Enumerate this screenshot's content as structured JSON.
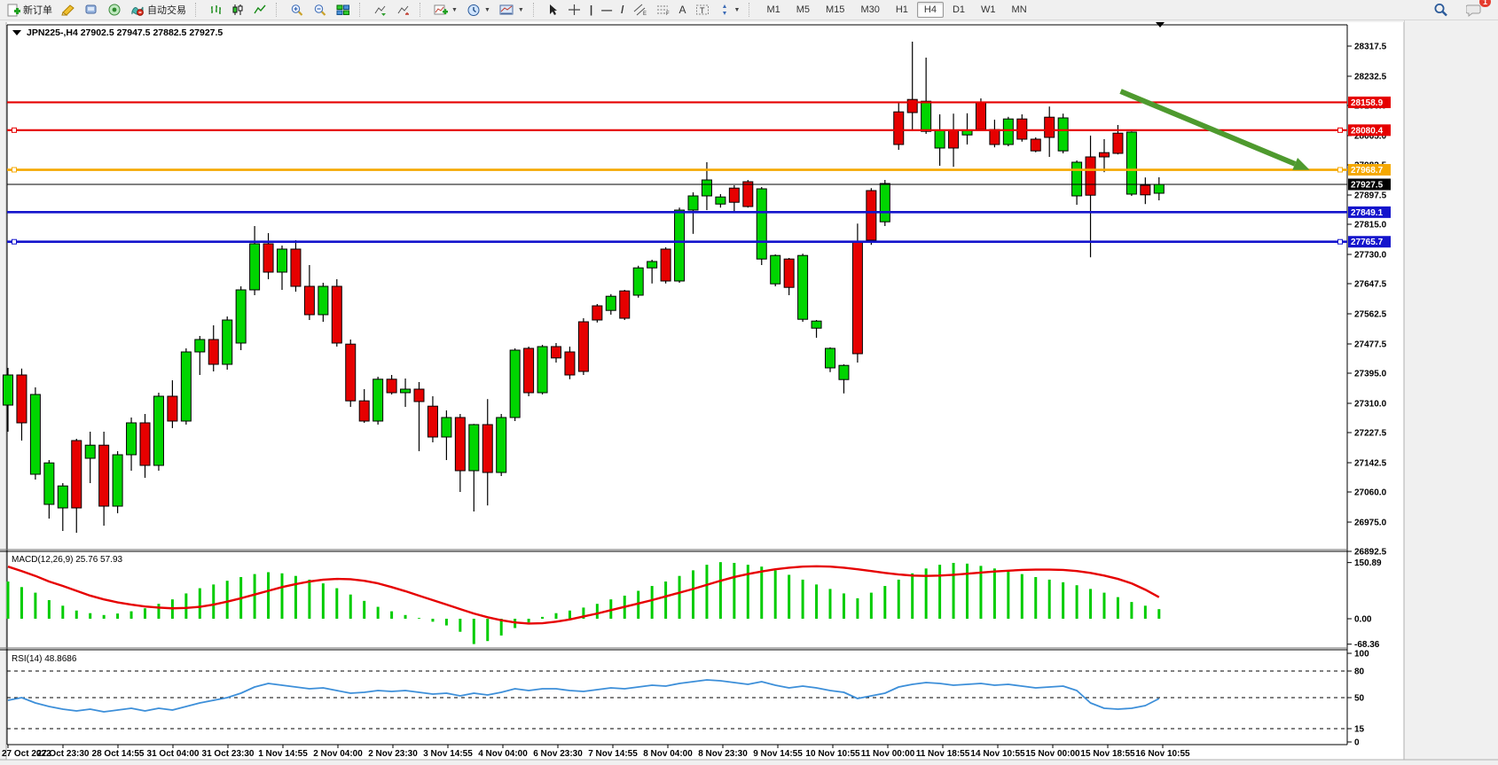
{
  "toolbar": {
    "new_order_label": "新订单",
    "autotrading_label": "自动交易",
    "timeframes": [
      "M1",
      "M5",
      "M15",
      "M30",
      "H1",
      "H4",
      "D1",
      "W1",
      "MN"
    ],
    "active_timeframe": "H4",
    "notification_count": "1",
    "icon_names": [
      "new-order",
      "editor",
      "data-window",
      "network",
      "autotrading",
      "bar-chart",
      "candlestick-chart",
      "line-chart",
      "zoom-in",
      "zoom-out",
      "tile-windows",
      "auto-scroll",
      "chart-shift",
      "indicators",
      "periods",
      "templates",
      "cursor",
      "crosshair",
      "vertical-line",
      "horizontal-line",
      "trendline",
      "equidistant-channel",
      "fibonacci",
      "text",
      "text-label",
      "arrows",
      "search",
      "notifications"
    ]
  },
  "chart": {
    "title_text": "JPN225-,H4  27902.5 27947.5 27882.5 27927.5",
    "symbol": "JPN225-",
    "timeframe": "H4",
    "macd_label": "MACD(12,26,9) 25.76 57.93",
    "rsi_label": "RSI(14) 48.8686"
  },
  "chart_data": [
    {
      "type": "candlestick",
      "title": "JPN225-,H4",
      "last_ohlc": {
        "open": 27902.5,
        "high": 27947.5,
        "low": 27882.5,
        "close": 27927.5
      },
      "ylim": [
        26850,
        28380
      ],
      "y_ticks": [
        "28317.5",
        "28232.5",
        "28150.0",
        "28065.0",
        "27982.5",
        "27897.5",
        "27815.0",
        "27730.0",
        "27647.5",
        "27562.5",
        "27477.5",
        "27395.0",
        "27310.0",
        "27227.5",
        "27142.5",
        "27060.0",
        "26975.0",
        "26892.5"
      ],
      "x_labels": [
        "27 Oct 2022",
        "27 Oct 23:30",
        "28 Oct 14:55",
        "31 Oct 04:00",
        "31 Oct 23:30",
        "1 Nov 14:55",
        "2 Nov 04:00",
        "2 Nov 23:30",
        "3 Nov 14:55",
        "4 Nov 04:00",
        "6 Nov 23:30",
        "7 Nov 14:55",
        "8 Nov 04:00",
        "8 Nov 23:30",
        "9 Nov 14:55",
        "10 Nov 10:55",
        "11 Nov 00:00",
        "11 Nov 18:55",
        "14 Nov 10:55",
        "15 Nov 00:00",
        "15 Nov 18:55",
        "16 Nov 10:55"
      ],
      "bull_color": "#00D500",
      "bear_color": "#E60000",
      "candles": [
        [
          27305,
          27410,
          27230,
          27390
        ],
        [
          27390,
          27408,
          27205,
          27255
        ],
        [
          27110,
          27355,
          27095,
          27335
        ],
        [
          27025,
          27150,
          26985,
          27142
        ],
        [
          27015,
          27085,
          26950,
          27077
        ],
        [
          27205,
          27210,
          26945,
          27015
        ],
        [
          27155,
          27230,
          27085,
          27192
        ],
        [
          27192,
          27230,
          26965,
          27020
        ],
        [
          27020,
          27175,
          27000,
          27165
        ],
        [
          27165,
          27270,
          27120,
          27255
        ],
        [
          27255,
          27280,
          27100,
          27135
        ],
        [
          27135,
          27340,
          27120,
          27330
        ],
        [
          27330,
          27375,
          27240,
          27260
        ],
        [
          27260,
          27465,
          27250,
          27455
        ],
        [
          27455,
          27500,
          27390,
          27490
        ],
        [
          27490,
          27530,
          27400,
          27420
        ],
        [
          27420,
          27555,
          27405,
          27545
        ],
        [
          27480,
          27640,
          27460,
          27630
        ],
        [
          27630,
          27810,
          27615,
          27760
        ],
        [
          27760,
          27790,
          27660,
          27680
        ],
        [
          27680,
          27755,
          27630,
          27745
        ],
        [
          27745,
          27770,
          27625,
          27640
        ],
        [
          27640,
          27700,
          27545,
          27560
        ],
        [
          27560,
          27650,
          27540,
          27640
        ],
        [
          27640,
          27660,
          27470,
          27480
        ],
        [
          27477,
          27490,
          27300,
          27317
        ],
        [
          27317,
          27350,
          27255,
          27260
        ],
        [
          27260,
          27385,
          27250,
          27378
        ],
        [
          27378,
          27390,
          27335,
          27340
        ],
        [
          27340,
          27380,
          27300,
          27350
        ],
        [
          27350,
          27370,
          27175,
          27315
        ],
        [
          27302,
          27330,
          27200,
          27215
        ],
        [
          27215,
          27290,
          27150,
          27270
        ],
        [
          27270,
          27280,
          27060,
          27120
        ],
        [
          27120,
          27252,
          27005,
          27250
        ],
        [
          27250,
          27322,
          27022,
          27115
        ],
        [
          27115,
          27280,
          27105,
          27270
        ],
        [
          27270,
          27465,
          27260,
          27460
        ],
        [
          27465,
          27470,
          27330,
          27340
        ],
        [
          27340,
          27475,
          27335,
          27470
        ],
        [
          27470,
          27480,
          27425,
          27438
        ],
        [
          27455,
          27470,
          27378,
          27390
        ],
        [
          27540,
          27550,
          27390,
          27400
        ],
        [
          27585,
          27590,
          27538,
          27545
        ],
        [
          27572,
          27618,
          27560,
          27612
        ],
        [
          27627,
          27630,
          27545,
          27550
        ],
        [
          27615,
          27698,
          27608,
          27692
        ],
        [
          27692,
          27715,
          27648,
          27710
        ],
        [
          27745,
          27750,
          27648,
          27655
        ],
        [
          27655,
          27862,
          27650,
          27855
        ],
        [
          27855,
          27905,
          27788,
          27895
        ],
        [
          27895,
          27990,
          27855,
          27940
        ],
        [
          27872,
          27900,
          27862,
          27892
        ],
        [
          27917,
          27925,
          27850,
          27877
        ],
        [
          27935,
          27940,
          27862,
          27865
        ],
        [
          27717,
          27920,
          27700,
          27915
        ],
        [
          27647,
          27730,
          27640,
          27727
        ],
        [
          27717,
          27720,
          27615,
          27637
        ],
        [
          27547,
          27732,
          27540,
          27727
        ],
        [
          27522,
          27545,
          27495,
          27542
        ],
        [
          27410,
          27468,
          27398,
          27465
        ],
        [
          27377,
          27420,
          27338,
          27417
        ],
        [
          27765,
          27817,
          27425,
          27450
        ],
        [
          27910,
          27917,
          27757,
          27770
        ],
        [
          27822,
          27940,
          27810,
          27930
        ],
        [
          28132,
          28157,
          28025,
          28040
        ],
        [
          28167,
          28330,
          28080,
          28130
        ],
        [
          28077,
          28285,
          28070,
          28162
        ],
        [
          28030,
          28125,
          27980,
          28080
        ],
        [
          28080,
          28127,
          27977,
          28030
        ],
        [
          28067,
          28128,
          28040,
          28080
        ],
        [
          28160,
          28170,
          28078,
          28082
        ],
        [
          28082,
          28110,
          28032,
          28040
        ],
        [
          28040,
          28118,
          28035,
          28112
        ],
        [
          28112,
          28125,
          28048,
          28055
        ],
        [
          28055,
          28060,
          28018,
          28022
        ],
        [
          28117,
          28147,
          28005,
          28060
        ],
        [
          28022,
          28127,
          28015,
          28115
        ],
        [
          27895,
          27995,
          27870,
          27990
        ],
        [
          28005,
          28065,
          27722,
          27897
        ],
        [
          28017,
          28055,
          27962,
          28005
        ],
        [
          28072,
          28095,
          28012,
          28015
        ],
        [
          27900,
          28077,
          27895,
          28075
        ],
        [
          27925,
          27947,
          27872,
          27898
        ],
        [
          27902.5,
          27947.5,
          27882.5,
          27927.5
        ]
      ],
      "horizontal_lines": [
        {
          "price": 28158.9,
          "label": "28158.9",
          "color": "#E60000",
          "width": 2.2,
          "handles": false
        },
        {
          "price": 28080.4,
          "label": "28080.4",
          "color": "#E60000",
          "width": 2.2,
          "handles": true
        },
        {
          "price": 27968.7,
          "label": "27968.7",
          "color": "#F5A800",
          "width": 2.6,
          "handles": true
        },
        {
          "price": 27849.1,
          "label": "27849.1",
          "color": "#1414CC",
          "width": 2.6,
          "handles": false
        },
        {
          "price": 27765.7,
          "label": "27765.7",
          "color": "#1414CC",
          "width": 2.6,
          "handles": true
        }
      ],
      "current_price": {
        "value": 27927.5,
        "label": "27927.5",
        "badge_color": "#000000"
      },
      "arrow_annotation": {
        "from": {
          "index": 81.2,
          "price": 28190
        },
        "to": {
          "index": 95,
          "price": 27968
        },
        "color": "#4E9A2E",
        "width": 6
      }
    },
    {
      "type": "bar",
      "title": "MACD(12,26,9)",
      "current_main": 25.76,
      "current_signal": 57.93,
      "y_ticks": [
        "150.89",
        "0.00",
        "-68.36"
      ],
      "histogram_color": "#00CC00",
      "signal_color": "#E60000",
      "histogram": [
        100,
        85,
        70,
        50,
        35,
        22,
        15,
        10,
        14,
        20,
        28,
        40,
        52,
        68,
        82,
        92,
        102,
        112,
        120,
        125,
        122,
        115,
        105,
        95,
        82,
        65,
        48,
        32,
        20,
        10,
        2,
        -8,
        -18,
        -35,
        -68,
        -60,
        -45,
        -25,
        -10,
        5,
        15,
        22,
        30,
        40,
        52,
        62,
        75,
        88,
        100,
        115,
        130,
        145,
        152,
        150,
        145,
        140,
        130,
        118,
        105,
        92,
        80,
        68,
        55,
        70,
        88,
        105,
        122,
        135,
        145,
        150,
        148,
        142,
        135,
        128,
        120,
        112,
        105,
        98,
        90,
        80,
        70,
        58,
        45,
        35,
        25.76
      ],
      "signal": [
        140,
        128,
        115,
        100,
        88,
        75,
        62,
        52,
        44,
        38,
        33,
        30,
        28,
        29,
        32,
        38,
        46,
        55,
        65,
        75,
        85,
        93,
        100,
        105,
        107,
        106,
        102,
        95,
        85,
        74,
        62,
        50,
        38,
        26,
        14,
        4,
        -4,
        -10,
        -13,
        -12,
        -8,
        -2,
        6,
        14,
        23,
        32,
        41,
        50,
        60,
        70,
        80,
        91,
        102,
        112,
        120,
        127,
        133,
        137,
        140,
        141,
        140,
        137,
        133,
        128,
        123,
        119,
        116,
        115,
        116,
        118,
        121,
        124,
        127,
        129,
        131,
        132,
        132,
        131,
        128,
        123,
        116,
        107,
        95,
        78,
        57.93
      ]
    },
    {
      "type": "line",
      "title": "RSI(14)",
      "current_value": 48.8686,
      "y_ticks": [
        "100",
        "80",
        "50",
        "15",
        "0"
      ],
      "levels": [
        80,
        50,
        15
      ],
      "line_color": "#3D8FD9",
      "values": [
        47,
        50,
        44,
        40,
        37,
        35,
        37,
        34,
        36,
        38,
        35,
        38,
        36,
        40,
        44,
        47,
        50,
        55,
        62,
        66,
        64,
        62,
        60,
        61,
        58,
        55,
        56,
        58,
        57,
        58,
        56,
        54,
        55,
        52,
        55,
        53,
        56,
        60,
        58,
        60,
        60,
        58,
        57,
        59,
        61,
        60,
        62,
        64,
        63,
        66,
        68,
        70,
        69,
        67,
        65,
        68,
        64,
        61,
        63,
        61,
        58,
        56,
        49,
        52,
        55,
        62,
        65,
        67,
        66,
        64,
        65,
        66,
        64,
        65,
        63,
        61,
        62,
        63,
        58,
        44,
        38,
        37,
        38,
        41,
        48.87
      ]
    }
  ]
}
